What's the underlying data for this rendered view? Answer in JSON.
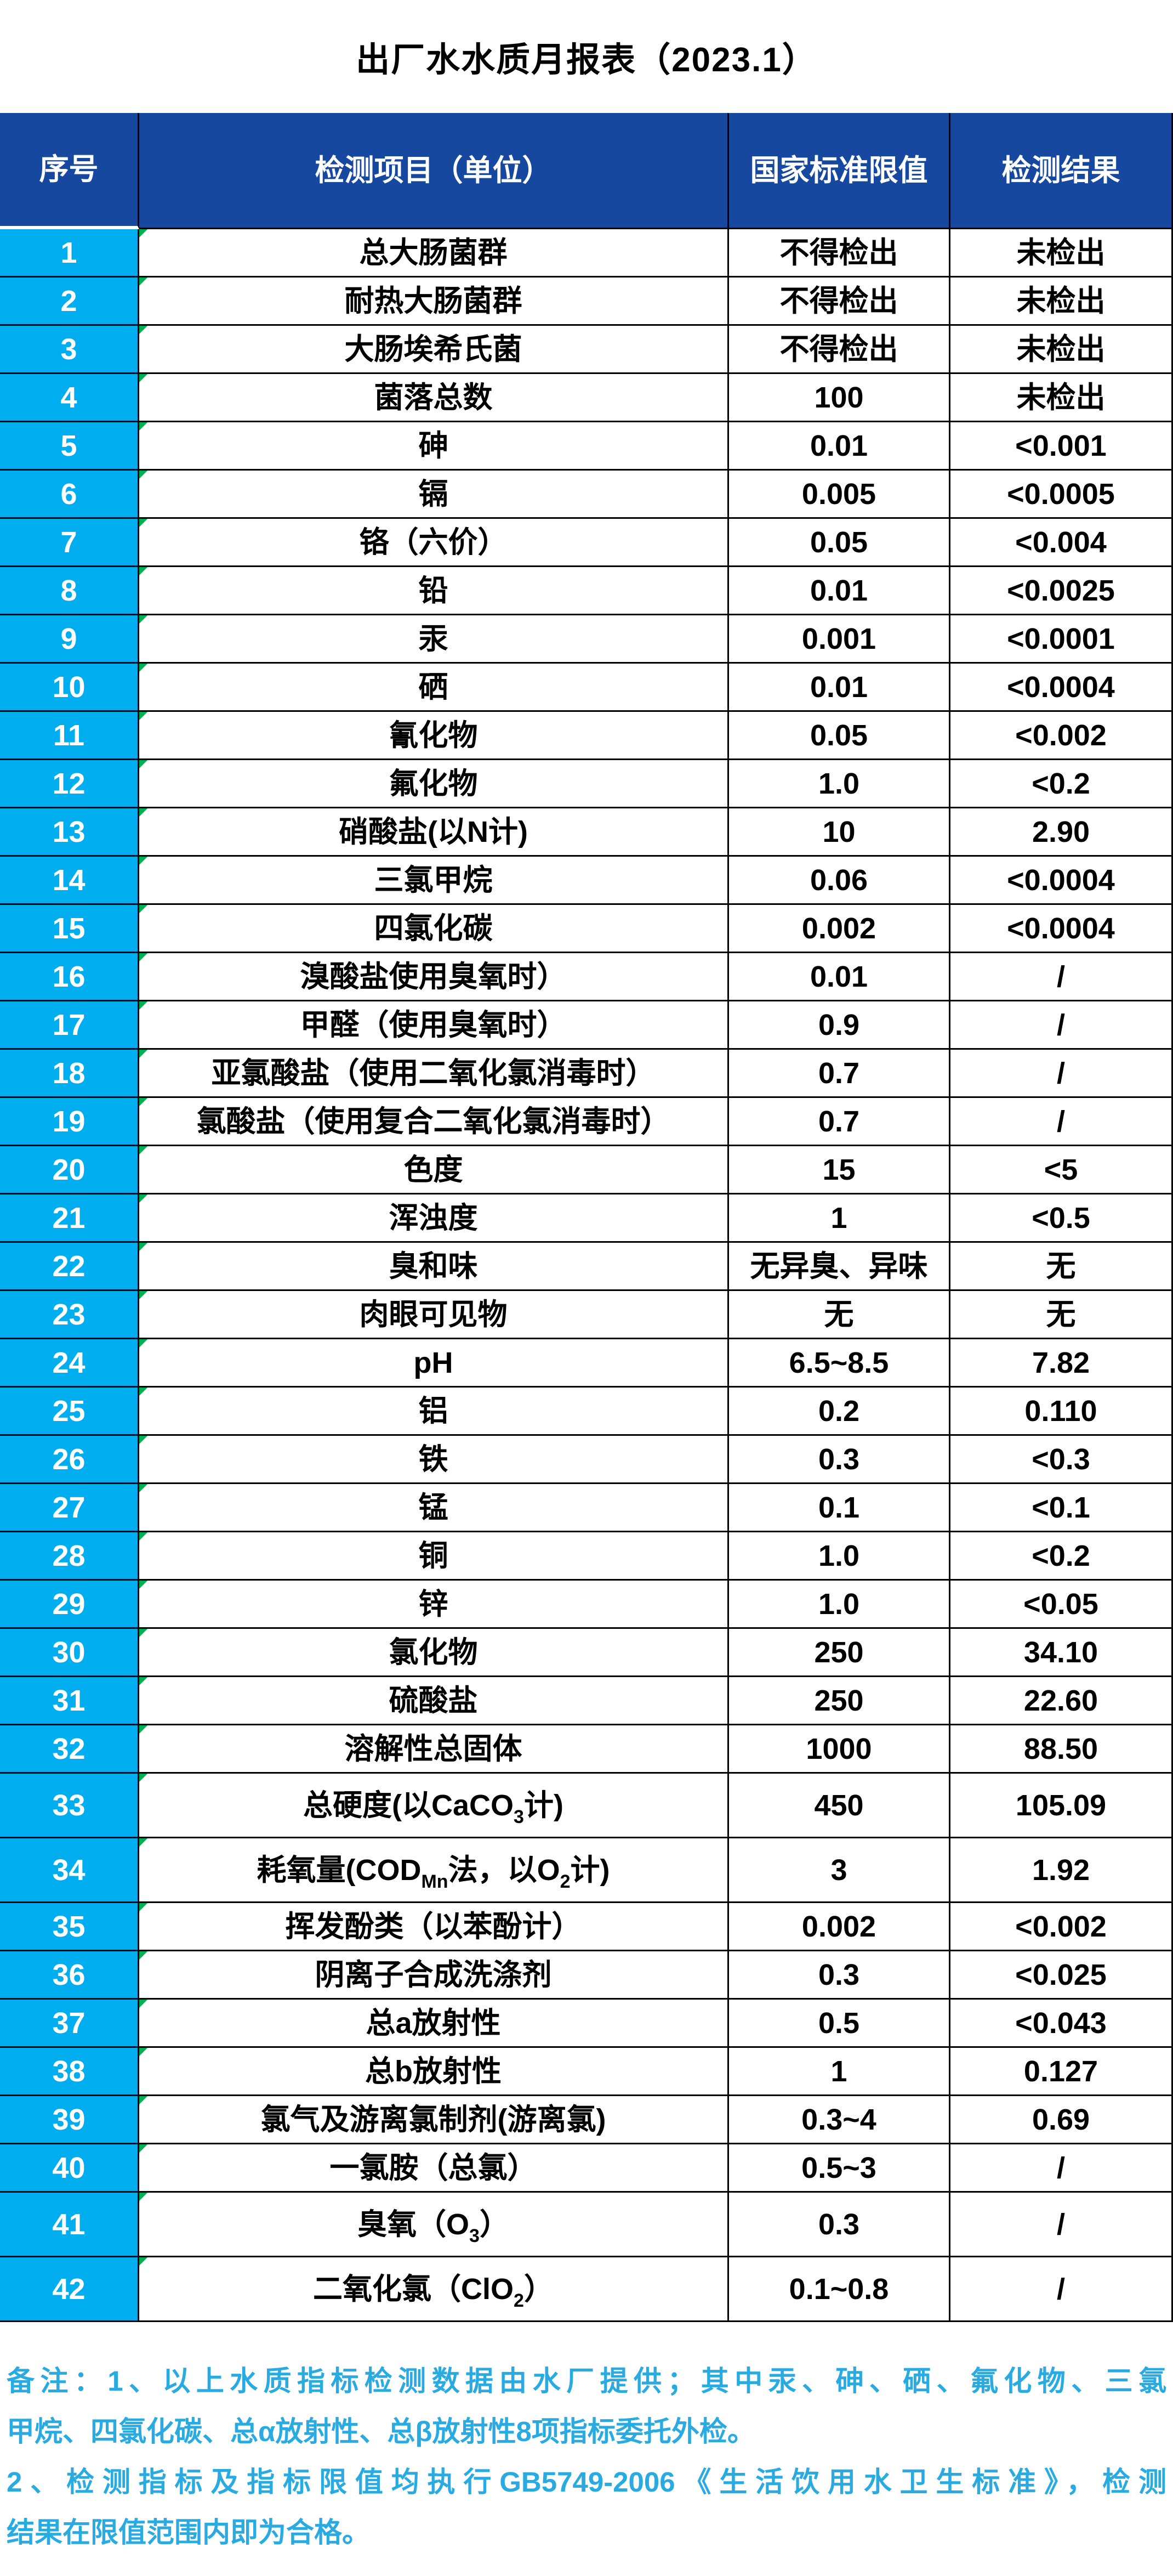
{
  "title": "出厂水水质月报表（2023.1）",
  "colors": {
    "header_bg": "#15489E",
    "index_column_bg": "#00AEEF",
    "note_text": "#29ABE2",
    "grid_line": "#000000",
    "error_indicator": "#00B050",
    "header_text": "#FFFFFF",
    "body_text": "#000000"
  },
  "table": {
    "headers": [
      "序号",
      "检测项目（单位）",
      "国家标准限值",
      "检测结果"
    ],
    "rows": [
      {
        "no": "1",
        "item": "总大肠菌群",
        "limit": "不得检出",
        "result": "未检出"
      },
      {
        "no": "2",
        "item": "耐热大肠菌群",
        "limit": "不得检出",
        "result": "未检出"
      },
      {
        "no": "3",
        "item": "大肠埃希氏菌",
        "limit": "不得检出",
        "result": "未检出"
      },
      {
        "no": "4",
        "item": "菌落总数",
        "limit": "100",
        "result": "未检出"
      },
      {
        "no": "5",
        "item": "砷",
        "limit": "0.01",
        "result": "<0.001"
      },
      {
        "no": "6",
        "item": "镉",
        "limit": "0.005",
        "result": "<0.0005"
      },
      {
        "no": "7",
        "item": "铬（六价）",
        "limit": "0.05",
        "result": "<0.004"
      },
      {
        "no": "8",
        "item": "铅",
        "limit": "0.01",
        "result": "<0.0025"
      },
      {
        "no": "9",
        "item": "汞",
        "limit": "0.001",
        "result": "<0.0001"
      },
      {
        "no": "10",
        "item": "硒",
        "limit": "0.01",
        "result": "<0.0004"
      },
      {
        "no": "11",
        "item": "氰化物",
        "limit": "0.05",
        "result": "<0.002"
      },
      {
        "no": "12",
        "item": "氟化物",
        "limit": "1.0",
        "result": "<0.2"
      },
      {
        "no": "13",
        "item": "硝酸盐(以N计)",
        "limit": "10",
        "result": "2.90"
      },
      {
        "no": "14",
        "item": "三氯甲烷",
        "limit": "0.06",
        "result": "<0.0004"
      },
      {
        "no": "15",
        "item": "四氯化碳",
        "limit": "0.002",
        "result": "<0.0004"
      },
      {
        "no": "16",
        "item": "溴酸盐使用臭氧时）",
        "limit": "0.01",
        "result": "/"
      },
      {
        "no": "17",
        "item": "甲醛（使用臭氧时）",
        "limit": "0.9",
        "result": "/"
      },
      {
        "no": "18",
        "item": "亚氯酸盐（使用二氧化氯消毒时）",
        "limit": "0.7",
        "result": "/"
      },
      {
        "no": "19",
        "item": "氯酸盐（使用复合二氧化氯消毒时）",
        "limit": "0.7",
        "result": "/"
      },
      {
        "no": "20",
        "item": "色度",
        "limit": "15",
        "result": "<5"
      },
      {
        "no": "21",
        "item": "浑浊度",
        "limit": "1",
        "result": "<0.5"
      },
      {
        "no": "22",
        "item": "臭和味",
        "limit": "无异臭、异味",
        "result": "无"
      },
      {
        "no": "23",
        "item": "肉眼可见物",
        "limit": "无",
        "result": "无"
      },
      {
        "no": "24",
        "item": "pH",
        "limit": "6.5~8.5",
        "result": "7.82"
      },
      {
        "no": "25",
        "item": "铝",
        "limit": "0.2",
        "result": "0.110"
      },
      {
        "no": "26",
        "item": "铁",
        "limit": "0.3",
        "result": "<0.3"
      },
      {
        "no": "27",
        "item": "锰",
        "limit": "0.1",
        "result": "<0.1"
      },
      {
        "no": "28",
        "item": "铜",
        "limit": "1.0",
        "result": "<0.2"
      },
      {
        "no": "29",
        "item": "锌",
        "limit": "1.0",
        "result": "<0.05"
      },
      {
        "no": "30",
        "item": "氯化物",
        "limit": "250",
        "result": "34.10"
      },
      {
        "no": "31",
        "item": "硫酸盐",
        "limit": "250",
        "result": "22.60"
      },
      {
        "no": "32",
        "item": "溶解性总固体",
        "limit": "1000",
        "result": "88.50"
      },
      {
        "no": "33",
        "item": [
          {
            "t": "总硬度(以CaCO"
          },
          {
            "t": "3",
            "sub": true
          },
          {
            "t": "计)"
          }
        ],
        "limit": "450",
        "result": "105.09",
        "tall": true
      },
      {
        "no": "34",
        "item": [
          {
            "t": "耗氧量(COD"
          },
          {
            "t": "Mn",
            "sub": true
          },
          {
            "t": "法，以O"
          },
          {
            "t": "2",
            "sub": true
          },
          {
            "t": "计)"
          }
        ],
        "limit": "3",
        "result": "1.92",
        "tall": true
      },
      {
        "no": "35",
        "item": "挥发酚类（以苯酚计）",
        "limit": "0.002",
        "result": "<0.002"
      },
      {
        "no": "36",
        "item": "阴离子合成洗涤剂",
        "limit": "0.3",
        "result": "<0.025"
      },
      {
        "no": "37",
        "item": "总a放射性",
        "limit": "0.5",
        "result": "<0.043"
      },
      {
        "no": "38",
        "item": "总b放射性",
        "limit": "1",
        "result": "0.127"
      },
      {
        "no": "39",
        "item": "氯气及游离氯制剂(游离氯)",
        "limit": "0.3~4",
        "result": "0.69"
      },
      {
        "no": "40",
        "item": "一氯胺（总氯）",
        "limit": "0.5~3",
        "result": "/"
      },
      {
        "no": "41",
        "item": [
          {
            "t": "臭氧（O"
          },
          {
            "t": "3",
            "sub": true
          },
          {
            "t": "）"
          }
        ],
        "limit": "0.3",
        "result": "/",
        "tall": true
      },
      {
        "no": "42",
        "item": [
          {
            "t": "二氧化氯（ClO"
          },
          {
            "t": "2",
            "sub": true
          },
          {
            "t": "）"
          }
        ],
        "limit": "0.1~0.8",
        "result": "/",
        "tall": true
      }
    ]
  },
  "notes": {
    "lines": [
      "备注：1、以上水质指标检测数据由水厂提供；其中汞、砷、硒、氟化物、三氯",
      "甲烷、四氯化碳、总α放射性、总β放射性8项指标委托外检。",
      "2、检测指标及指标限值均执行GB5749-2006《生活饮用水卫生标准》，检测",
      "结果在限值范围内即为合格。"
    ]
  }
}
